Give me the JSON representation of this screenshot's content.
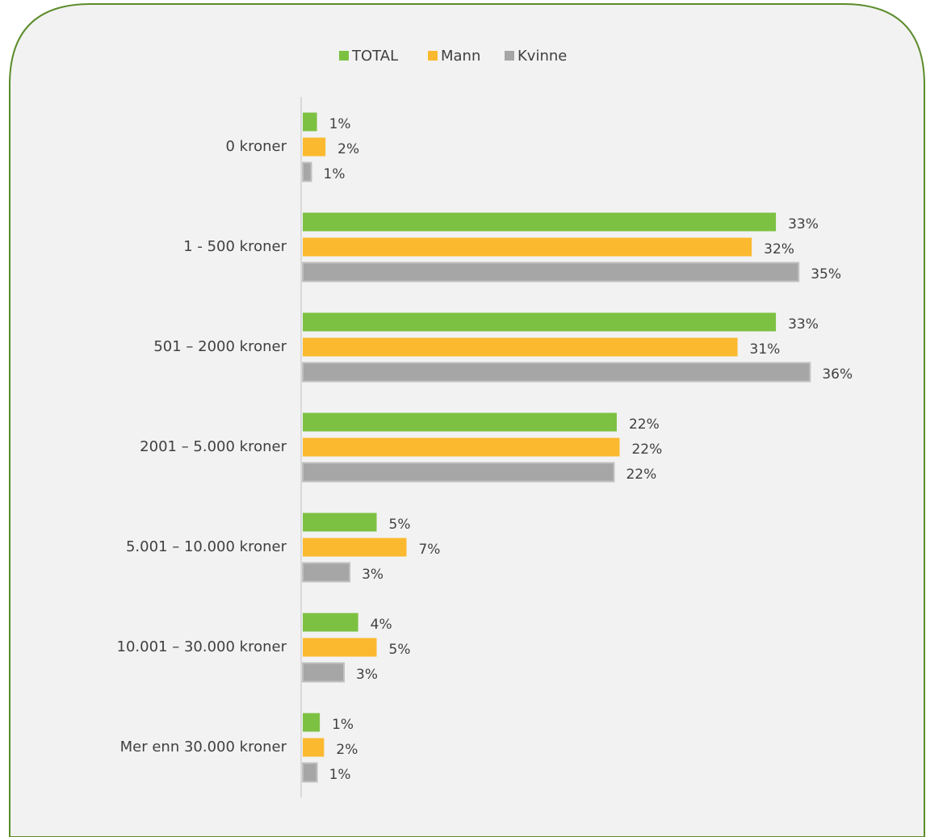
{
  "chart_data": {
    "type": "bar",
    "orientation": "horizontal",
    "categories": [
      "0 kroner",
      "1 -  500 kroner",
      "501 – 2000 kroner",
      "2001 – 5.000 kroner",
      "5.001 – 10.000 kroner",
      "10.001 – 30.000 kroner",
      "Mer enn 30.000 kroner"
    ],
    "series": [
      {
        "name": "TOTAL",
        "color": "#7dc142",
        "values": [
          1.0,
          33.3,
          33.3,
          22.1,
          5.2,
          3.9,
          1.2
        ],
        "value_labels": [
          "1%",
          "33%",
          "33%",
          "22%",
          "5%",
          "4%",
          "1%"
        ]
      },
      {
        "name": "Mann",
        "color": "#fbb92f",
        "values": [
          1.6,
          31.6,
          30.6,
          22.3,
          7.3,
          5.2,
          1.5
        ],
        "value_labels": [
          "2%",
          "32%",
          "31%",
          "22%",
          "7%",
          "5%",
          "2%"
        ]
      },
      {
        "name": "Kvinne",
        "color": "#a6a6a6",
        "values": [
          0.6,
          34.9,
          35.7,
          21.9,
          3.3,
          2.9,
          1.0
        ],
        "value_labels": [
          "1%",
          "35%",
          "36%",
          "22%",
          "3%",
          "3%",
          "1%"
        ]
      }
    ],
    "xlim": [
      0,
      40
    ],
    "legend": "top"
  }
}
